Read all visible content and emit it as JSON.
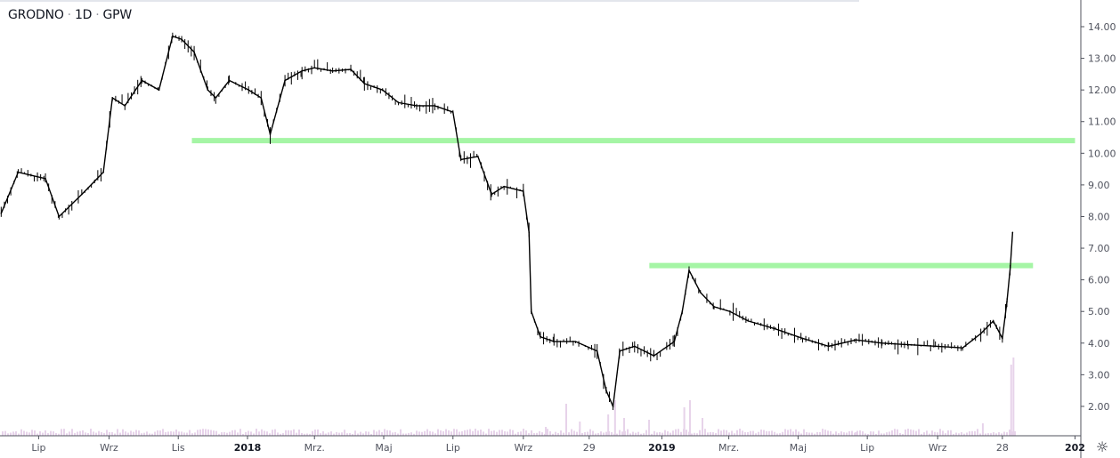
{
  "header": {
    "symbol": "GRODNO",
    "interval": "1D",
    "exchange": "GPW",
    "separator": "·"
  },
  "chart_data": {
    "type": "line",
    "title": "GRODNO · 1D · GPW",
    "ylim": [
      1.3,
      14.8
    ],
    "yticks": [
      "14.00",
      "13.00",
      "12.00",
      "11.00",
      "10.00",
      "9.00",
      "8.00",
      "7.00",
      "6.00",
      "5.00",
      "4.00",
      "3.00",
      "2.00"
    ],
    "xticks": [
      {
        "label": "Lip",
        "date": "2017-07-01",
        "bold": false
      },
      {
        "label": "Wrz",
        "date": "2017-09-01",
        "bold": false
      },
      {
        "label": "Lis",
        "date": "2017-11-01",
        "bold": false
      },
      {
        "label": "2018",
        "date": "2018-01-01",
        "bold": true
      },
      {
        "label": "Mrz.",
        "date": "2018-03-01",
        "bold": false
      },
      {
        "label": "Maj",
        "date": "2018-05-01",
        "bold": false
      },
      {
        "label": "Lip",
        "date": "2018-07-01",
        "bold": false
      },
      {
        "label": "Wrz",
        "date": "2018-09-01",
        "bold": false
      },
      {
        "label": "29",
        "date": "2018-10-29",
        "bold": false
      },
      {
        "label": "2019",
        "date": "2019-01-01",
        "bold": true
      },
      {
        "label": "Mrz.",
        "date": "2019-03-01",
        "bold": false
      },
      {
        "label": "Maj",
        "date": "2019-05-01",
        "bold": false
      },
      {
        "label": "Lip",
        "date": "2019-07-01",
        "bold": false
      },
      {
        "label": "Wrz",
        "date": "2019-09-01",
        "bold": false
      },
      {
        "label": "28",
        "date": "2019-10-28",
        "bold": false
      },
      {
        "label": "202",
        "date": "2019-12-31",
        "bold": true
      }
    ],
    "series": [
      {
        "color": "#000000",
        "points": [
          [
            "2017-05-29",
            8.1
          ],
          [
            "2017-06-13",
            9.4
          ],
          [
            "2017-07-07",
            9.2
          ],
          [
            "2017-07-19",
            8.0
          ],
          [
            "2017-08-08",
            8.7
          ],
          [
            "2017-08-27",
            9.4
          ],
          [
            "2017-09-04",
            11.75
          ],
          [
            "2017-09-15",
            11.5
          ],
          [
            "2017-09-30",
            12.3
          ],
          [
            "2017-10-15",
            12.0
          ],
          [
            "2017-10-27",
            13.7
          ],
          [
            "2017-11-04",
            13.6
          ],
          [
            "2017-11-15",
            13.2
          ],
          [
            "2017-11-27",
            12.0
          ],
          [
            "2017-12-04",
            11.75
          ],
          [
            "2017-12-16",
            12.3
          ],
          [
            "2018-01-02",
            12.0
          ],
          [
            "2018-01-13",
            11.75
          ],
          [
            "2018-01-21",
            10.6
          ],
          [
            "2018-02-03",
            12.3
          ],
          [
            "2018-02-18",
            12.6
          ],
          [
            "2018-03-01",
            12.7
          ],
          [
            "2018-03-17",
            12.6
          ],
          [
            "2018-04-02",
            12.65
          ],
          [
            "2018-04-14",
            12.2
          ],
          [
            "2018-04-30",
            12.0
          ],
          [
            "2018-05-14",
            11.6
          ],
          [
            "2018-05-30",
            11.5
          ],
          [
            "2018-06-15",
            11.5
          ],
          [
            "2018-07-01",
            11.3
          ],
          [
            "2018-07-08",
            9.8
          ],
          [
            "2018-07-23",
            9.9
          ],
          [
            "2018-08-04",
            8.7
          ],
          [
            "2018-08-15",
            8.95
          ],
          [
            "2018-09-01",
            8.8
          ],
          [
            "2018-09-06",
            7.5
          ],
          [
            "2018-09-08",
            5.0
          ],
          [
            "2018-09-16",
            4.2
          ],
          [
            "2018-09-28",
            4.05
          ],
          [
            "2018-10-17",
            4.05
          ],
          [
            "2018-11-05",
            3.75
          ],
          [
            "2018-11-13",
            2.5
          ],
          [
            "2018-11-19",
            2.0
          ],
          [
            "2018-11-25",
            3.75
          ],
          [
            "2018-12-08",
            3.9
          ],
          [
            "2018-12-25",
            3.6
          ],
          [
            "2019-01-12",
            4.05
          ],
          [
            "2019-01-19",
            5.0
          ],
          [
            "2019-01-25",
            6.3
          ],
          [
            "2019-02-04",
            5.6
          ],
          [
            "2019-02-16",
            5.15
          ],
          [
            "2019-03-02",
            5.0
          ],
          [
            "2019-03-18",
            4.7
          ],
          [
            "2019-04-11",
            4.45
          ],
          [
            "2019-05-05",
            4.15
          ],
          [
            "2019-05-28",
            3.9
          ],
          [
            "2019-06-21",
            4.1
          ],
          [
            "2019-07-14",
            4.0
          ],
          [
            "2019-08-06",
            3.95
          ],
          [
            "2019-08-30",
            3.9
          ],
          [
            "2019-09-23",
            3.85
          ],
          [
            "2019-10-09",
            4.3
          ],
          [
            "2019-10-20",
            4.7
          ],
          [
            "2019-10-28",
            4.15
          ],
          [
            "2019-11-01",
            5.3
          ],
          [
            "2019-11-04",
            6.4
          ],
          [
            "2019-11-06",
            7.5
          ]
        ]
      }
    ],
    "volume": {
      "color": "#e7d3ea",
      "spikes": [
        [
          "2017-06-10",
          0.08
        ],
        [
          "2017-10-20",
          0.1
        ],
        [
          "2018-03-10",
          0.06
        ],
        [
          "2018-09-20",
          0.25
        ],
        [
          "2018-10-08",
          0.9
        ],
        [
          "2018-10-20",
          0.4
        ],
        [
          "2018-11-14",
          0.6
        ],
        [
          "2018-11-20",
          1.0
        ],
        [
          "2018-11-28",
          0.5
        ],
        [
          "2018-12-20",
          0.45
        ],
        [
          "2019-01-20",
          0.8
        ],
        [
          "2019-01-25",
          1.0
        ],
        [
          "2019-02-05",
          0.5
        ],
        [
          "2019-03-10",
          0.2
        ],
        [
          "2019-06-20",
          0.1
        ],
        [
          "2019-10-10",
          0.35
        ],
        [
          "2019-11-04",
          2.0
        ],
        [
          "2019-11-06",
          2.2
        ]
      ]
    },
    "hlines": [
      {
        "price": 10.4,
        "from": "2017-11-13",
        "to": "2019-12-31",
        "color": "#a5f5a5"
      },
      {
        "price": 6.45,
        "from": "2018-12-21",
        "to": "2019-11-24",
        "color": "#a5f5a5"
      }
    ],
    "grid": false,
    "legend": "none"
  }
}
